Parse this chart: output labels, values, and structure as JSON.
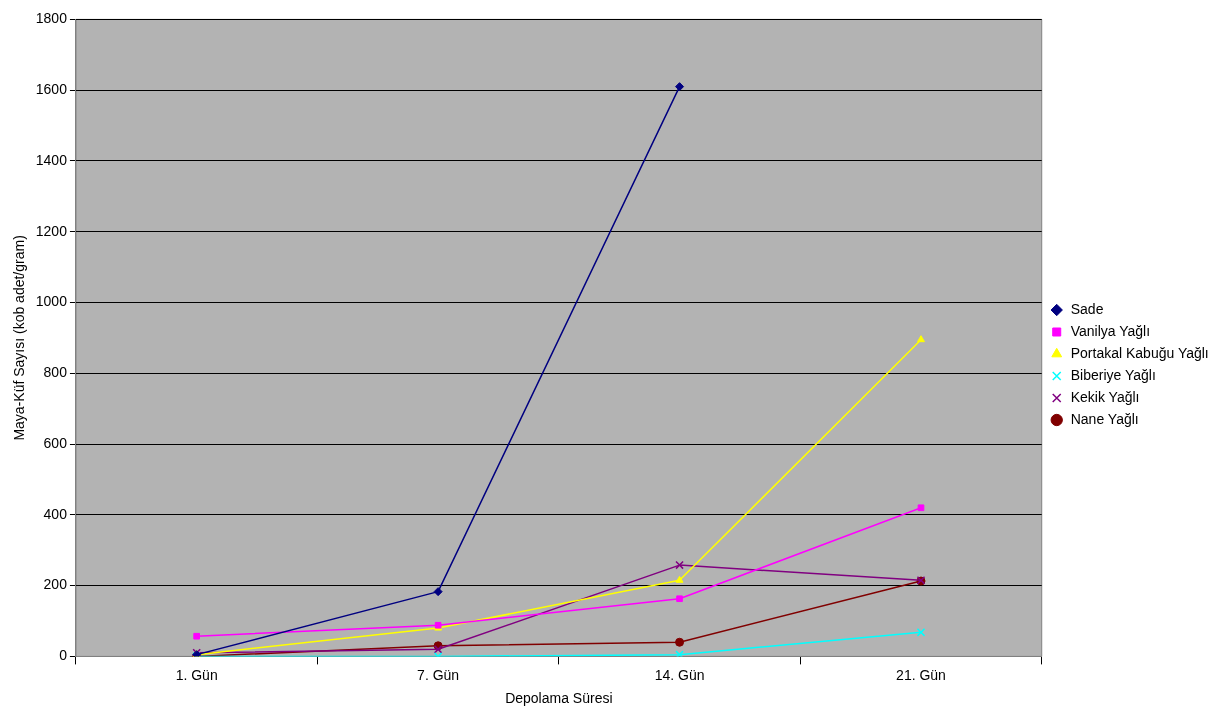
{
  "chart_data": {
    "type": "line",
    "xlabel": "Depolama Süresi",
    "ylabel": "Maya-Küf Sayısı (kob adet/gram)",
    "categories": [
      "1. Gün",
      "7. Gün",
      "14. Gün",
      "21. Gün"
    ],
    "ylim": [
      0,
      1800
    ],
    "yticks": [
      0,
      200,
      400,
      600,
      800,
      1000,
      1200,
      1400,
      1600,
      1800
    ],
    "grid": "y",
    "legend": "right",
    "series": [
      {
        "name": "Sade",
        "color": "#000080",
        "marker": "diamond",
        "values": [
          5,
          183,
          1610,
          null
        ]
      },
      {
        "name": "Vanilya Yağlı",
        "color": "#ff00ff",
        "marker": "square",
        "values": [
          57,
          88,
          163,
          420
        ]
      },
      {
        "name": "Portakal Kabuğu Yağlı",
        "color": "#ffff00",
        "marker": "triangle",
        "values": [
          5,
          80,
          215,
          895
        ]
      },
      {
        "name": "Biberiye Yağlı",
        "color": "#00ffff",
        "marker": "cross",
        "values": [
          0,
          0,
          5,
          68
        ]
      },
      {
        "name": "Kekik Yağlı ",
        "color": "#800080",
        "marker": "cross",
        "values": [
          10,
          20,
          258,
          215
        ]
      },
      {
        "name": "Nane Yağlı",
        "color": "#800000",
        "marker": "circle",
        "values": [
          0,
          30,
          40,
          213
        ]
      }
    ]
  }
}
